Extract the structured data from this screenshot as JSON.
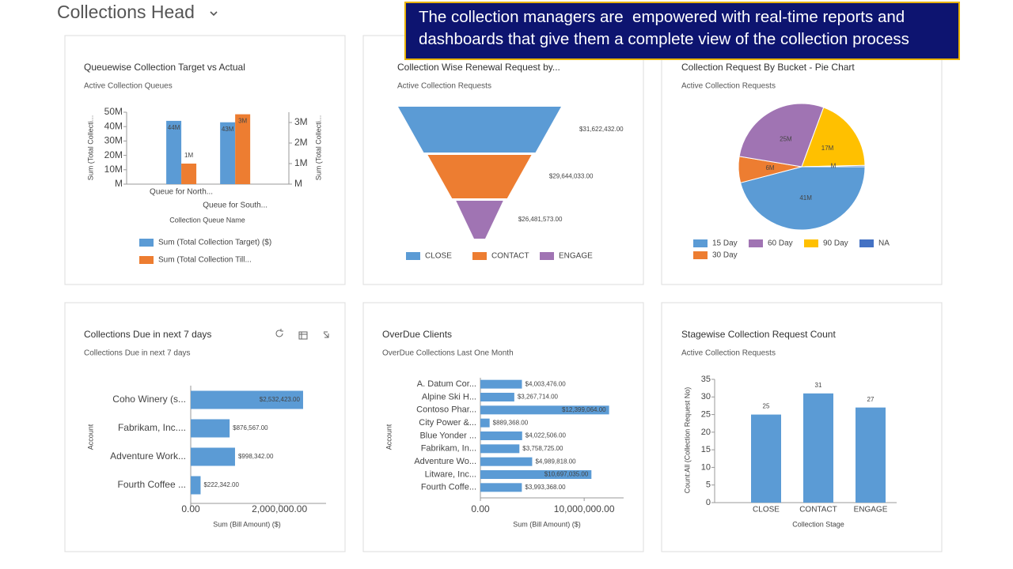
{
  "header": {
    "title": "Collections Head"
  },
  "callout": {
    "text": "The collection managers are  empowered with real-time reports and dashboards that give them a complete view of the collection process"
  },
  "chart_data": [
    {
      "type": "bar",
      "title": "Queuewise Collection Target vs Actual",
      "subtitle": "Active Collection Queues",
      "x_label": "Collection Queue Name",
      "y_label": "Sum (Total Collecti...",
      "y2_label": "Sum (Total Collecti...",
      "categories": [
        "Queue for North...",
        "Queue for South..."
      ],
      "series": [
        {
          "name": "Sum (Total Collection Target) ($)",
          "color": "#5b9bd5",
          "axis": "y",
          "values": [
            44000000,
            43000000
          ],
          "value_labels": [
            "44M",
            "43M"
          ]
        },
        {
          "name": "Sum (Total Collection Till...",
          "color": "#ed7d31",
          "axis": "y2",
          "values": [
            1000000,
            3400000
          ],
          "value_labels": [
            "1M",
            "3M"
          ]
        }
      ],
      "ylim": [
        0,
        50000000
      ],
      "yticks": [
        {
          "value": 0,
          "label": "M"
        },
        {
          "value": 10000000,
          "label": "10M"
        },
        {
          "value": 20000000,
          "label": "20M"
        },
        {
          "value": 30000000,
          "label": "30M"
        },
        {
          "value": 40000000,
          "label": "40M"
        },
        {
          "value": 50000000,
          "label": "50M"
        }
      ],
      "y2lim": [
        0,
        3500000
      ],
      "y2ticks": [
        {
          "value": 0,
          "label": "M"
        },
        {
          "value": 1000000,
          "label": "1M"
        },
        {
          "value": 2000000,
          "label": "2M"
        },
        {
          "value": 3000000,
          "label": "3M"
        }
      ]
    },
    {
      "type": "funnel",
      "title": "Collection Wise Renewal Request by...",
      "subtitle": "Active Collection Requests",
      "categories": [
        "CLOSE",
        "CONTACT",
        "ENGAGE"
      ],
      "values": [
        31622432,
        29644033,
        26481573
      ],
      "value_labels": [
        "$31,622,432.00",
        "$29,644,033.00",
        "$26,481,573.00"
      ],
      "colors": [
        "#5b9bd5",
        "#ed7d31",
        "#a074b3"
      ]
    },
    {
      "type": "pie",
      "title": "Collection Request By Bucket - Pie Chart",
      "subtitle": "Active Collection Requests",
      "categories": [
        "15 Day",
        "30 Day",
        "60 Day",
        "90 Day",
        "NA"
      ],
      "values": [
        41000000,
        6000000,
        25000000,
        17000000,
        300000
      ],
      "value_labels": [
        "41M",
        "6M",
        "25M",
        "17M",
        "M"
      ],
      "colors": [
        "#5b9bd5",
        "#ed7d31",
        "#a074b3",
        "#ffc000",
        "#4472c4"
      ]
    },
    {
      "type": "barh",
      "title": "Collections Due in next 7 days",
      "subtitle": "Collections Due in next 7 days",
      "x_label": "Sum (Bill Amount) ($)",
      "y_label": "Account",
      "categories": [
        "Coho Winery (s...",
        "Fabrikam, Inc....",
        "Adventure Work...",
        "Fourth Coffee ..."
      ],
      "values": [
        2532423,
        876567,
        998342,
        222342
      ],
      "value_labels": [
        "$2,532,423.00",
        "$876,567.00",
        "$998,342.00",
        "$222,342.00"
      ],
      "color": "#5b9bd5",
      "xlim": [
        0,
        3050000
      ],
      "xticks": [
        {
          "value": 0,
          "label": "0.00"
        },
        {
          "value": 2000000,
          "label": "2,000,000.00"
        }
      ]
    },
    {
      "type": "barh",
      "title": "OverDue Clients",
      "subtitle": "OverDue Collections Last One Month",
      "x_label": "Sum (Bill Amount) ($)",
      "y_label": "Account",
      "categories": [
        "A. Datum Cor...",
        "Alpine Ski H...",
        "Contoso Phar...",
        "City Power &...",
        "Blue Yonder ...",
        "Fabrikam, In...",
        "Adventure Wo...",
        "Litware, Inc...",
        "Fourth Coffe..."
      ],
      "values": [
        4003476,
        3267714,
        12399064,
        889368,
        4022506,
        3758725,
        4989818,
        10697035,
        3993368
      ],
      "value_labels": [
        "$4,003,476.00",
        "$3,267,714.00",
        "$12,399,064.00",
        "$889,368.00",
        "$4,022,506.00",
        "$3,758,725.00",
        "$4,989,818.00",
        "$10,697,035.00",
        "$3,993,368.00"
      ],
      "color": "#5b9bd5",
      "xlim": [
        0,
        13800000
      ],
      "xticks": [
        {
          "value": 0,
          "label": "0.00"
        },
        {
          "value": 10000000,
          "label": "10,000,000.00"
        }
      ]
    },
    {
      "type": "bar",
      "title": "Stagewise Collection Request Count",
      "subtitle": "Active Collection Requests",
      "x_label": "Collection Stage",
      "y_label": "Count:All (Collection Request No)",
      "categories": [
        "CLOSE",
        "CONTACT",
        "ENGAGE"
      ],
      "values": [
        25,
        31,
        27
      ],
      "color": "#5b9bd5",
      "ylim": [
        0,
        35
      ],
      "yticks": [
        0,
        5,
        10,
        15,
        20,
        25,
        30,
        35
      ]
    }
  ]
}
